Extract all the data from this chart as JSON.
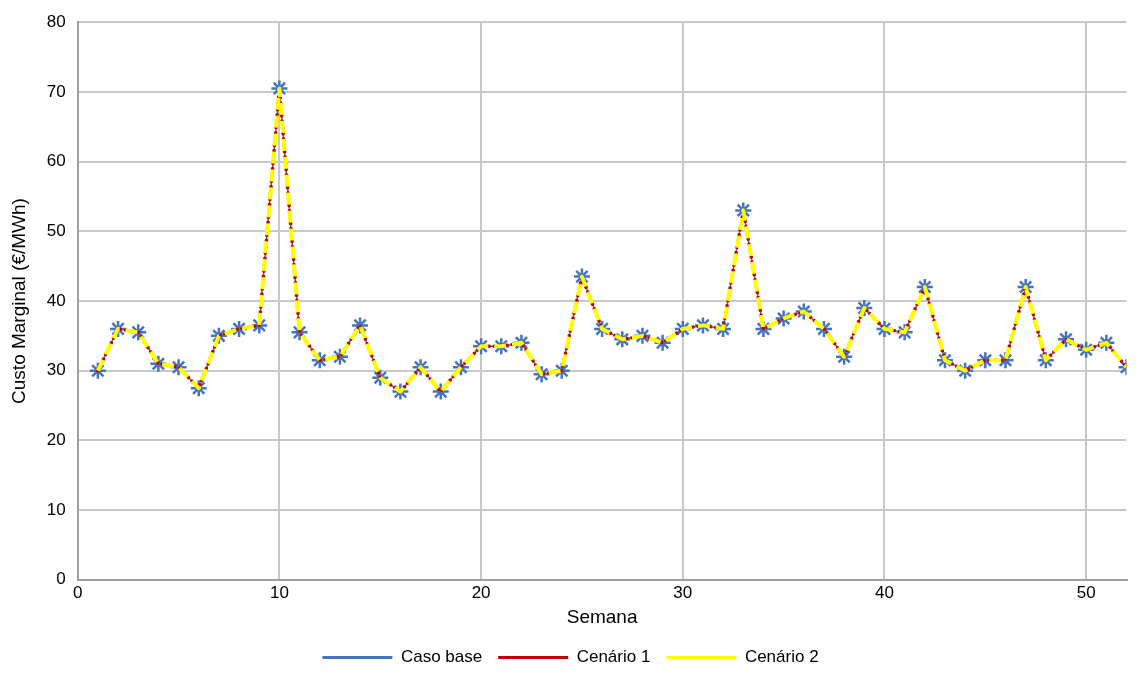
{
  "chart_data": {
    "type": "line",
    "xlabel": "Semana",
    "ylabel": "Custo Marginal (€/MWh)",
    "x": [
      1,
      2,
      3,
      4,
      5,
      6,
      7,
      8,
      9,
      10,
      11,
      12,
      13,
      14,
      15,
      16,
      17,
      18,
      19,
      20,
      21,
      22,
      23,
      24,
      25,
      26,
      27,
      28,
      29,
      30,
      31,
      32,
      33,
      34,
      35,
      36,
      37,
      38,
      39,
      40,
      41,
      42,
      43,
      44,
      45,
      46,
      47,
      48,
      49,
      50,
      51,
      52
    ],
    "series": [
      {
        "name": "Caso base",
        "color": "#4472c4",
        "marker": "cross",
        "line_style": "solid",
        "values": [
          30,
          36,
          35.5,
          31,
          30.5,
          27.5,
          35,
          36,
          36.5,
          70.5,
          35.5,
          31.5,
          32,
          36.5,
          29,
          27,
          30.5,
          27,
          30.5,
          33.5,
          33.5,
          34,
          29.5,
          30,
          43.5,
          36,
          34.5,
          35,
          34,
          36,
          36.5,
          36,
          53,
          36,
          37.5,
          38.5,
          36,
          32,
          39,
          36,
          35.5,
          42,
          31.5,
          30,
          31.5,
          31.5,
          42,
          31.5,
          34.5,
          33,
          34,
          30.5
        ]
      },
      {
        "name": "Cenário 1",
        "color": "#c00000",
        "marker": "none",
        "line_style": "dotted",
        "values": [
          30,
          36,
          35.5,
          31,
          30.5,
          27.5,
          35,
          36,
          36.5,
          70.5,
          35.5,
          31.5,
          32,
          36.5,
          29,
          27,
          30.5,
          27,
          30.5,
          33.5,
          33.5,
          34,
          29.5,
          30,
          43.5,
          36,
          34.5,
          35,
          34,
          36,
          36.5,
          36,
          53,
          36,
          37.5,
          38.5,
          36,
          32,
          39,
          36,
          35.5,
          42,
          31.5,
          30,
          31.5,
          31.5,
          42,
          31.5,
          34.5,
          33,
          34,
          30.5
        ]
      },
      {
        "name": "Cenário 2",
        "color": "#ffff00",
        "marker": "none",
        "line_style": "dashed",
        "values": [
          30,
          36,
          35.5,
          31,
          30.5,
          27.5,
          35,
          36,
          36.5,
          70.5,
          35.5,
          31.5,
          32,
          36.5,
          29,
          27,
          30.5,
          27,
          30.5,
          33.5,
          33.5,
          34,
          29.5,
          30,
          43.5,
          36,
          34.5,
          35,
          34,
          36,
          36.5,
          36,
          53,
          36,
          37.5,
          38.5,
          36,
          32,
          39,
          36,
          35.5,
          42,
          31.5,
          30,
          31.5,
          31.5,
          42,
          31.5,
          34.5,
          33,
          34,
          30.5
        ]
      }
    ],
    "xlim": [
      0,
      52
    ],
    "xticks": [
      0,
      10,
      20,
      30,
      40,
      50
    ],
    "ylim": [
      0,
      80
    ],
    "yticks": [
      0,
      10,
      20,
      30,
      40,
      50,
      60,
      70,
      80
    ],
    "grid": true,
    "legend": "bottom"
  }
}
